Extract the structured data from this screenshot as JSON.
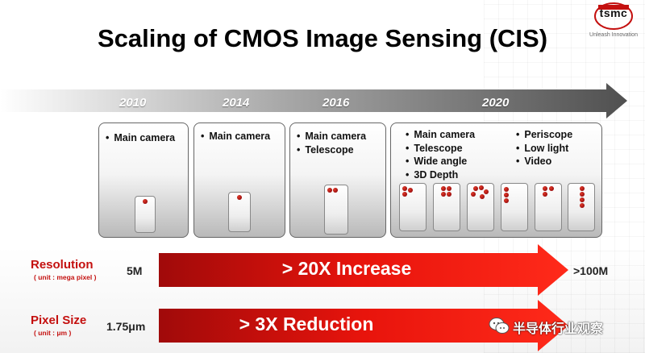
{
  "logo": {
    "name": "tsmc",
    "tagline": "Unleash Innovation"
  },
  "title": "Scaling of CMOS Image Sensing (CIS)",
  "timeline": {
    "years": [
      "2010",
      "2014",
      "2016",
      "2020"
    ]
  },
  "panels": [
    {
      "year": "2010",
      "features": [
        "Main camera"
      ],
      "cameras": 1
    },
    {
      "year": "2014",
      "features": [
        "Main camera"
      ],
      "cameras": 1
    },
    {
      "year": "2016",
      "features": [
        "Main camera",
        "Telescope"
      ],
      "cameras": 2
    },
    {
      "year": "2020",
      "features_left": [
        "Main camera",
        "Telescope",
        "Wide angle",
        "3D Depth"
      ],
      "features_right": [
        "Periscope",
        "Low light",
        "Video"
      ],
      "phone_camera_counts": [
        3,
        4,
        5,
        3,
        3,
        4
      ]
    }
  ],
  "rows": [
    {
      "label": "Resolution",
      "unit": "( unit : mega pixel )",
      "start": "5M",
      "change": "> 20X Increase",
      "end": ">100M"
    },
    {
      "label": "Pixel Size",
      "unit": "( unit : μm )",
      "start": "1.75μm",
      "change": "> 3X Reduction",
      "end": ""
    }
  ],
  "watermark": "半导体行业观察",
  "colors": {
    "accent_red": "#c4100f",
    "arrow_red": "#e8140c",
    "timeline_gray": "#5a5a5a"
  }
}
